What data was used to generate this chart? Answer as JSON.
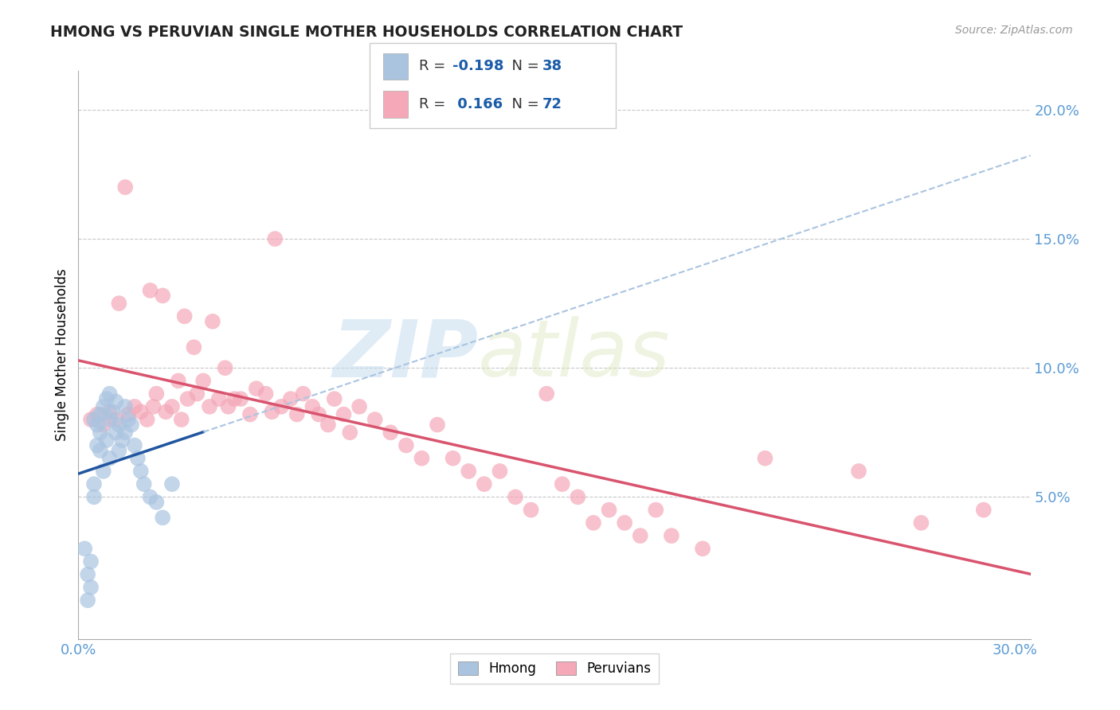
{
  "title": "HMONG VS PERUVIAN SINGLE MOTHER HOUSEHOLDS CORRELATION CHART",
  "source": "Source: ZipAtlas.com",
  "tick_color": "#5b9bd5",
  "ylabel": "Single Mother Households",
  "xlim": [
    0.0,
    0.305
  ],
  "ylim": [
    -0.005,
    0.215
  ],
  "x_ticks": [
    0.0,
    0.05,
    0.1,
    0.15,
    0.2,
    0.25,
    0.3
  ],
  "y_ticks": [
    0.0,
    0.05,
    0.1,
    0.15,
    0.2
  ],
  "hmong_color": "#aac4e0",
  "peruvian_color": "#f4a8b8",
  "hmong_line_color": "#2155a0",
  "peruvian_line_color": "#d9546e",
  "hmong_dashed_color": "#aac4e0",
  "hmong_R": -0.198,
  "hmong_N": 38,
  "peruvian_R": 0.166,
  "peruvian_N": 72,
  "watermark_zip": "ZIP",
  "watermark_atlas": "atlas",
  "background_color": "#ffffff",
  "grid_color": "#c8c8c8",
  "legend_text_color": "#1a5ca8",
  "legend_label_color": "#333333",
  "hmong_scatter_x": [
    0.002,
    0.003,
    0.003,
    0.004,
    0.004,
    0.005,
    0.005,
    0.005,
    0.006,
    0.006,
    0.007,
    0.007,
    0.007,
    0.008,
    0.008,
    0.009,
    0.009,
    0.01,
    0.01,
    0.01,
    0.011,
    0.012,
    0.012,
    0.013,
    0.013,
    0.014,
    0.015,
    0.015,
    0.016,
    0.017,
    0.018,
    0.019,
    0.02,
    0.021,
    0.023,
    0.025,
    0.027,
    0.03
  ],
  "hmong_scatter_y": [
    0.03,
    0.02,
    0.01,
    0.025,
    0.015,
    0.08,
    0.055,
    0.05,
    0.078,
    0.07,
    0.082,
    0.075,
    0.068,
    0.085,
    0.06,
    0.088,
    0.072,
    0.09,
    0.08,
    0.065,
    0.083,
    0.087,
    0.075,
    0.078,
    0.068,
    0.072,
    0.085,
    0.075,
    0.08,
    0.078,
    0.07,
    0.065,
    0.06,
    0.055,
    0.05,
    0.048,
    0.042,
    0.055
  ],
  "peruvian_scatter_x": [
    0.004,
    0.006,
    0.008,
    0.01,
    0.012,
    0.013,
    0.015,
    0.016,
    0.018,
    0.02,
    0.022,
    0.023,
    0.024,
    0.025,
    0.027,
    0.028,
    0.03,
    0.032,
    0.033,
    0.034,
    0.035,
    0.037,
    0.038,
    0.04,
    0.042,
    0.043,
    0.045,
    0.047,
    0.048,
    0.05,
    0.052,
    0.055,
    0.057,
    0.06,
    0.062,
    0.063,
    0.065,
    0.068,
    0.07,
    0.072,
    0.075,
    0.077,
    0.08,
    0.082,
    0.085,
    0.087,
    0.09,
    0.095,
    0.1,
    0.105,
    0.11,
    0.115,
    0.12,
    0.125,
    0.13,
    0.135,
    0.14,
    0.145,
    0.15,
    0.155,
    0.16,
    0.165,
    0.17,
    0.175,
    0.18,
    0.185,
    0.19,
    0.2,
    0.22,
    0.25,
    0.27,
    0.29
  ],
  "peruvian_scatter_y": [
    0.08,
    0.082,
    0.078,
    0.083,
    0.08,
    0.125,
    0.17,
    0.082,
    0.085,
    0.083,
    0.08,
    0.13,
    0.085,
    0.09,
    0.128,
    0.083,
    0.085,
    0.095,
    0.08,
    0.12,
    0.088,
    0.108,
    0.09,
    0.095,
    0.085,
    0.118,
    0.088,
    0.1,
    0.085,
    0.088,
    0.088,
    0.082,
    0.092,
    0.09,
    0.083,
    0.15,
    0.085,
    0.088,
    0.082,
    0.09,
    0.085,
    0.082,
    0.078,
    0.088,
    0.082,
    0.075,
    0.085,
    0.08,
    0.075,
    0.07,
    0.065,
    0.078,
    0.065,
    0.06,
    0.055,
    0.06,
    0.05,
    0.045,
    0.09,
    0.055,
    0.05,
    0.04,
    0.045,
    0.04,
    0.035,
    0.045,
    0.035,
    0.03,
    0.065,
    0.06,
    0.04,
    0.045
  ]
}
